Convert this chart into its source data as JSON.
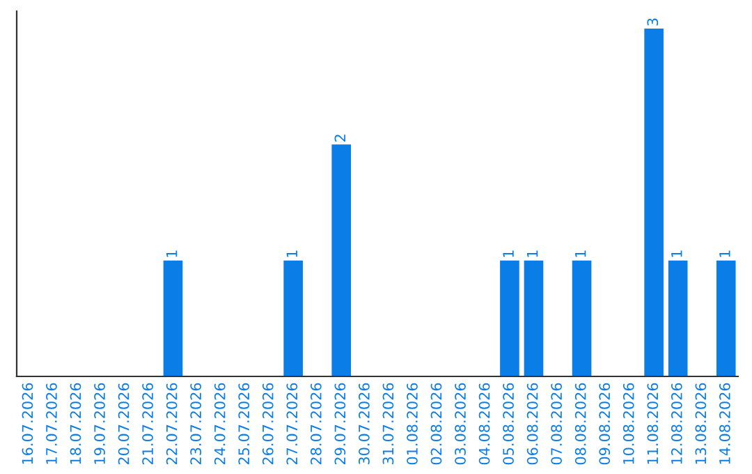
{
  "chart_data": {
    "type": "bar",
    "categories": [
      "16.07.2026",
      "17.07.2026",
      "18.07.2026",
      "19.07.2026",
      "20.07.2026",
      "21.07.2026",
      "22.07.2026",
      "23.07.2026",
      "24.07.2026",
      "25.07.2026",
      "26.07.2026",
      "27.07.2026",
      "28.07.2026",
      "29.07.2026",
      "30.07.2026",
      "31.07.2026",
      "01.08.2026",
      "02.08.2026",
      "03.08.2026",
      "04.08.2026",
      "05.08.2026",
      "06.08.2026",
      "07.08.2026",
      "08.08.2026",
      "09.08.2026",
      "10.08.2026",
      "11.08.2026",
      "12.08.2026",
      "13.08.2026",
      "14.08.2026"
    ],
    "values": [
      0,
      0,
      0,
      0,
      0,
      0,
      1,
      0,
      0,
      0,
      0,
      1,
      0,
      2,
      0,
      0,
      0,
      0,
      0,
      0,
      1,
      1,
      0,
      1,
      0,
      0,
      3,
      1,
      0,
      1
    ],
    "value_labels": [
      null,
      null,
      null,
      null,
      null,
      null,
      "1",
      null,
      null,
      null,
      null,
      "1",
      null,
      "2",
      null,
      null,
      null,
      null,
      null,
      null,
      "1",
      "1",
      null,
      "1",
      null,
      null,
      "3",
      "1",
      null,
      "1"
    ],
    "color": "#0a7de6",
    "ylim": [
      0,
      3.15
    ],
    "tick_labels": "x",
    "grid": false,
    "legend": false
  }
}
